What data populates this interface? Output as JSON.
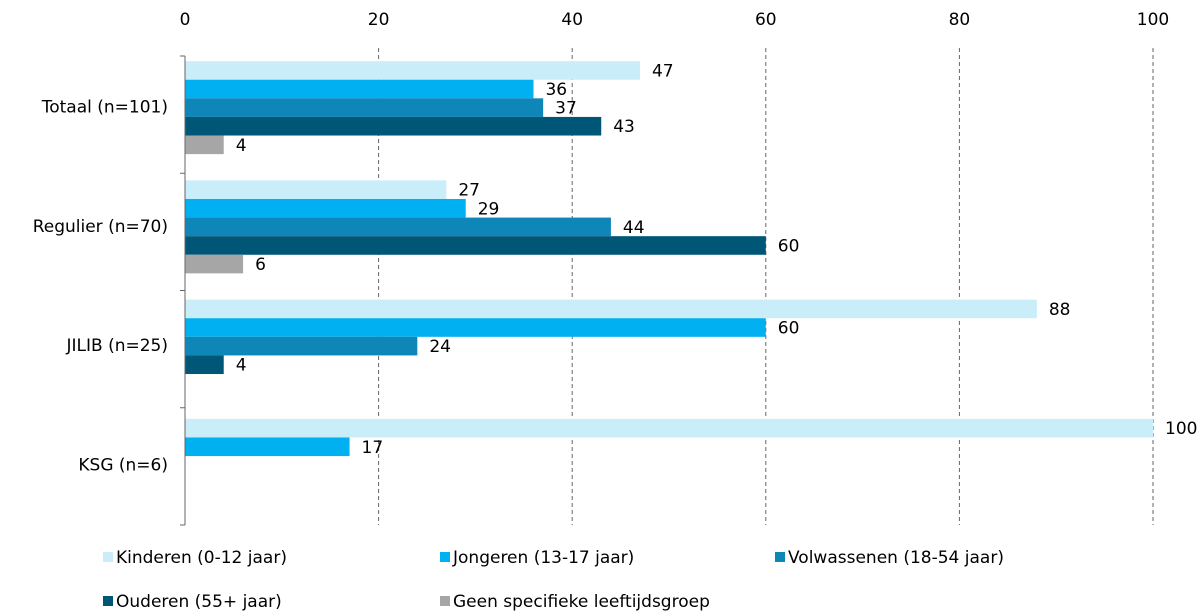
{
  "chart_data": {
    "type": "bar",
    "orientation": "horizontal",
    "categories": [
      "Totaal (n=101)",
      "Regulier (n=70)",
      "JILIB (n=25)",
      "KSG (n=6)"
    ],
    "series": [
      {
        "name": "Kinderen (0-12 jaar)",
        "color": "#c9eefa",
        "values": [
          47,
          27,
          88,
          100
        ]
      },
      {
        "name": "Jongeren (13-17 jaar)",
        "color": "#00b0f0",
        "values": [
          36,
          29,
          60,
          17
        ]
      },
      {
        "name": "Volwassenen (18-54 jaar)",
        "color": "#0e86b8",
        "values": [
          37,
          44,
          24,
          null
        ]
      },
      {
        "name": "Ouderen (55+ jaar)",
        "color": "#005677",
        "values": [
          43,
          60,
          4,
          null
        ]
      },
      {
        "name": "Geen specifieke leeftijdsgroep",
        "color": "#a6a6a6",
        "values": [
          4,
          6,
          null,
          null
        ]
      }
    ],
    "xlim": [
      0,
      100
    ],
    "xticks": [
      0,
      20,
      40,
      60,
      80,
      100
    ],
    "grid": true,
    "legend": "bottom"
  }
}
